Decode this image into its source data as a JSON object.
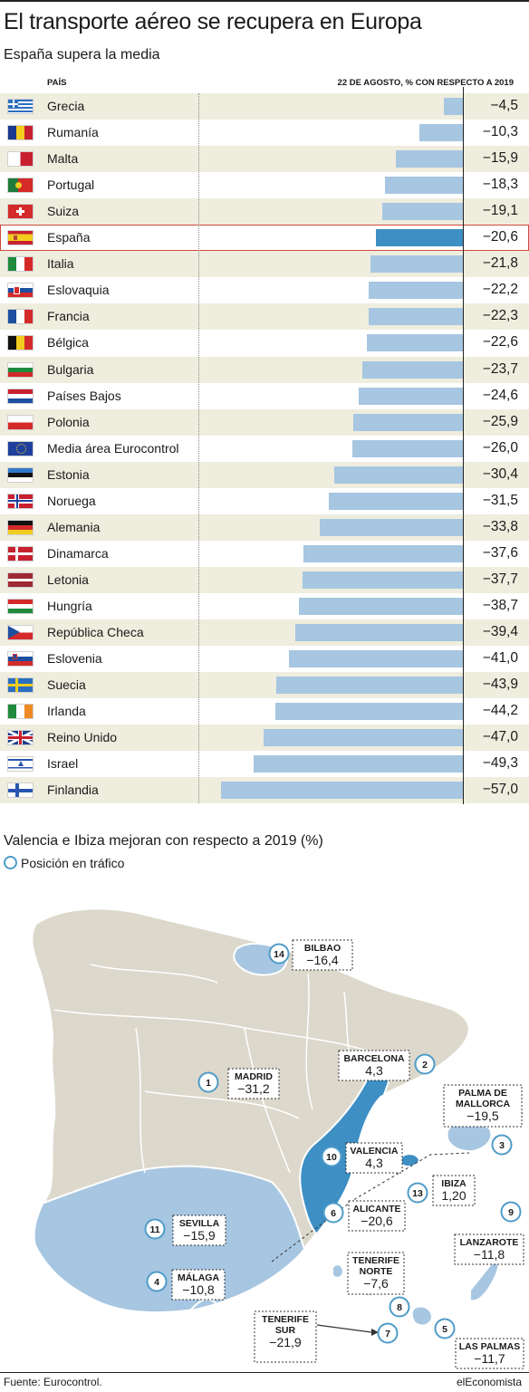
{
  "title": "El transporte aéreo se recupera en Europa",
  "subtitle": "España supera la media",
  "chart_data": [
    {
      "type": "bar",
      "orientation": "horizontal",
      "column_header_left": "PAÍS",
      "column_header_right": "22 DE AGOSTO, % CON RESPECTO A 2019",
      "highlight": "España",
      "xlim": [
        -60,
        0
      ],
      "categories": [
        "Grecia",
        "Rumanía",
        "Malta",
        "Portugal",
        "Suiza",
        "España",
        "Italia",
        "Eslovaquia",
        "Francia",
        "Bélgica",
        "Bulgaria",
        "Países Bajos",
        "Polonia",
        "Media área Eurocontrol",
        "Estonia",
        "Noruega",
        "Alemania",
        "Dinamarca",
        "Letonia",
        "Hungría",
        "República Checa",
        "Eslovenia",
        "Suecia",
        "Irlanda",
        "Reino Unido",
        "Israel",
        "Finlandia"
      ],
      "values": [
        -4.5,
        -10.3,
        -15.9,
        -18.3,
        -19.1,
        -20.6,
        -21.8,
        -22.2,
        -22.3,
        -22.6,
        -23.7,
        -24.6,
        -25.9,
        -26.0,
        -30.4,
        -31.5,
        -33.8,
        -37.6,
        -37.7,
        -38.7,
        -39.4,
        -41.0,
        -43.9,
        -44.2,
        -47.0,
        -49.3,
        -57.0
      ],
      "labels": [
        "−4,5",
        "−10,3",
        "−15,9",
        "−18,3",
        "−19,1",
        "−20,6",
        "−21,8",
        "−22,2",
        "−22,3",
        "−22,6",
        "−23,7",
        "−24,6",
        "−25,9",
        "−26,0",
        "−30,4",
        "−31,5",
        "−33,8",
        "−37,6",
        "−37,7",
        "−38,7",
        "−39,4",
        "−41,0",
        "−43,9",
        "−44,2",
        "−47,0",
        "−49,3",
        "−57,0"
      ],
      "flags": [
        "gr",
        "ro",
        "mt",
        "pt",
        "ch",
        "es",
        "it",
        "sk",
        "fr",
        "be",
        "bg",
        "nl",
        "pl",
        "eu",
        "ee",
        "no",
        "de",
        "dk",
        "lv",
        "hu",
        "cz",
        "si",
        "se",
        "ie",
        "gb",
        "il",
        "fi"
      ]
    },
    {
      "type": "map",
      "title": "Valencia e Ibiza mejoran con respecto a 2019 (%)",
      "legend": "Posición en tráfico",
      "airports": [
        {
          "name": "MADRID",
          "rank": 1,
          "value": "−31,2"
        },
        {
          "name": "BARCELONA",
          "rank": 2,
          "value": "4,3"
        },
        {
          "name": "PALMA DE MALLORCA",
          "rank": 3,
          "value": "−19,5"
        },
        {
          "name": "MÁLAGA",
          "rank": 4,
          "value": "−10,8"
        },
        {
          "name": "LAS PALMAS",
          "rank": 5,
          "value": "−11,7"
        },
        {
          "name": "ALICANTE",
          "rank": 6,
          "value": "−20,6"
        },
        {
          "name": "TENERIFE SUR",
          "rank": 7,
          "value": "−21,9"
        },
        {
          "name": "TENERIFE NORTE",
          "rank": 8,
          "value": "−7,6"
        },
        {
          "name": "LANZAROTE",
          "rank": 9,
          "value": "−11,8"
        },
        {
          "name": "VALENCIA",
          "rank": 10,
          "value": "4,3"
        },
        {
          "name": "SEVILLA",
          "rank": 11,
          "value": "−15,9"
        },
        {
          "name": "IBIZA",
          "rank": 13,
          "value": "1,20"
        },
        {
          "name": "BILBAO",
          "rank": 14,
          "value": "−16,4"
        }
      ]
    }
  ],
  "colors": {
    "bar": "#a7c6e1",
    "highlight_bar": "#3d8fc4",
    "row_alt": "#efedde",
    "land": "#dcd8cc",
    "region_light": "#a7c6e1",
    "region_dark": "#3d8fc4",
    "highlight_border": "#d24a3e"
  },
  "footer": {
    "source": "Fuente: Eurocontrol.",
    "brand": "elEconomista"
  }
}
